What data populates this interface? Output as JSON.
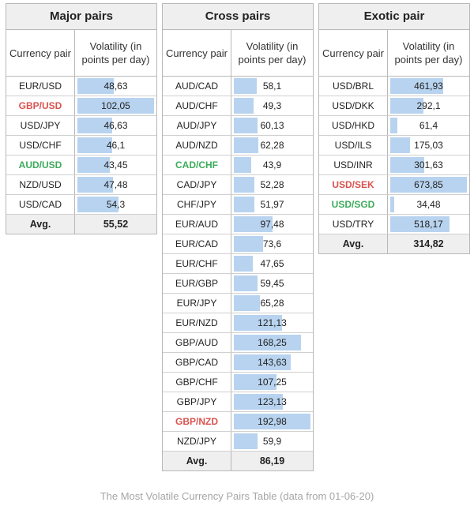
{
  "caption": "The Most Volatile Currency Pairs Table (data from 01-06-20)",
  "chart_data": [
    {
      "type": "table",
      "title": "Major pairs",
      "columns": [
        "Currency pair",
        "Volatility (in points per day)"
      ],
      "max": 102.05,
      "rows": [
        {
          "pair": "EUR/USD",
          "value": 48.63,
          "label": "48,63"
        },
        {
          "pair": "GBP/USD",
          "value": 102.05,
          "label": "102,05",
          "highlight": "red"
        },
        {
          "pair": "USD/JPY",
          "value": 46.63,
          "label": "46,63"
        },
        {
          "pair": "USD/CHF",
          "value": 46.1,
          "label": "46,1"
        },
        {
          "pair": "AUD/USD",
          "value": 43.45,
          "label": "43,45",
          "highlight": "green"
        },
        {
          "pair": "NZD/USD",
          "value": 47.48,
          "label": "47,48"
        },
        {
          "pair": "USD/CAD",
          "value": 54.3,
          "label": "54,3"
        }
      ],
      "avg_label": "Avg.",
      "avg_value": "55,52"
    },
    {
      "type": "table",
      "title": "Cross pairs",
      "columns": [
        "Currency pair",
        "Volatility (in points per day)"
      ],
      "max": 192.98,
      "rows": [
        {
          "pair": "AUD/CAD",
          "value": 58.1,
          "label": "58,1"
        },
        {
          "pair": "AUD/CHF",
          "value": 49.3,
          "label": "49,3"
        },
        {
          "pair": "AUD/JPY",
          "value": 60.13,
          "label": "60,13"
        },
        {
          "pair": "AUD/NZD",
          "value": 62.28,
          "label": "62,28"
        },
        {
          "pair": "CAD/CHF",
          "value": 43.9,
          "label": "43,9",
          "highlight": "green"
        },
        {
          "pair": "CAD/JPY",
          "value": 52.28,
          "label": "52,28"
        },
        {
          "pair": "CHF/JPY",
          "value": 51.97,
          "label": "51,97"
        },
        {
          "pair": "EUR/AUD",
          "value": 97.48,
          "label": "97,48"
        },
        {
          "pair": "EUR/CAD",
          "value": 73.6,
          "label": "73,6"
        },
        {
          "pair": "EUR/CHF",
          "value": 47.65,
          "label": "47,65"
        },
        {
          "pair": "EUR/GBP",
          "value": 59.45,
          "label": "59,45"
        },
        {
          "pair": "EUR/JPY",
          "value": 65.28,
          "label": "65,28"
        },
        {
          "pair": "EUR/NZD",
          "value": 121.13,
          "label": "121,13"
        },
        {
          "pair": "GBP/AUD",
          "value": 168.25,
          "label": "168,25"
        },
        {
          "pair": "GBP/CAD",
          "value": 143.63,
          "label": "143,63"
        },
        {
          "pair": "GBP/CHF",
          "value": 107.25,
          "label": "107,25"
        },
        {
          "pair": "GBP/JPY",
          "value": 123.13,
          "label": "123,13"
        },
        {
          "pair": "GBP/NZD",
          "value": 192.98,
          "label": "192,98",
          "highlight": "red"
        },
        {
          "pair": "NZD/JPY",
          "value": 59.9,
          "label": "59,9"
        }
      ],
      "avg_label": "Avg.",
      "avg_value": "86,19"
    },
    {
      "type": "table",
      "title": "Exotic pair",
      "columns": [
        "Currency pair",
        "Volatility (in points per day)"
      ],
      "max": 673.85,
      "rows": [
        {
          "pair": "USD/BRL",
          "value": 461.93,
          "label": "461,93"
        },
        {
          "pair": "USD/DKK",
          "value": 292.1,
          "label": "292,1"
        },
        {
          "pair": "USD/HKD",
          "value": 61.4,
          "label": "61,4"
        },
        {
          "pair": "USD/ILS",
          "value": 175.03,
          "label": "175,03"
        },
        {
          "pair": "USD/INR",
          "value": 301.63,
          "label": "301,63"
        },
        {
          "pair": "USD/SEK",
          "value": 673.85,
          "label": "673,85",
          "highlight": "red"
        },
        {
          "pair": "USD/SGD",
          "value": 34.48,
          "label": "34,48",
          "highlight": "green"
        },
        {
          "pair": "USD/TRY",
          "value": 518.17,
          "label": "518,17"
        }
      ],
      "avg_label": "Avg.",
      "avg_value": "314,82"
    }
  ]
}
